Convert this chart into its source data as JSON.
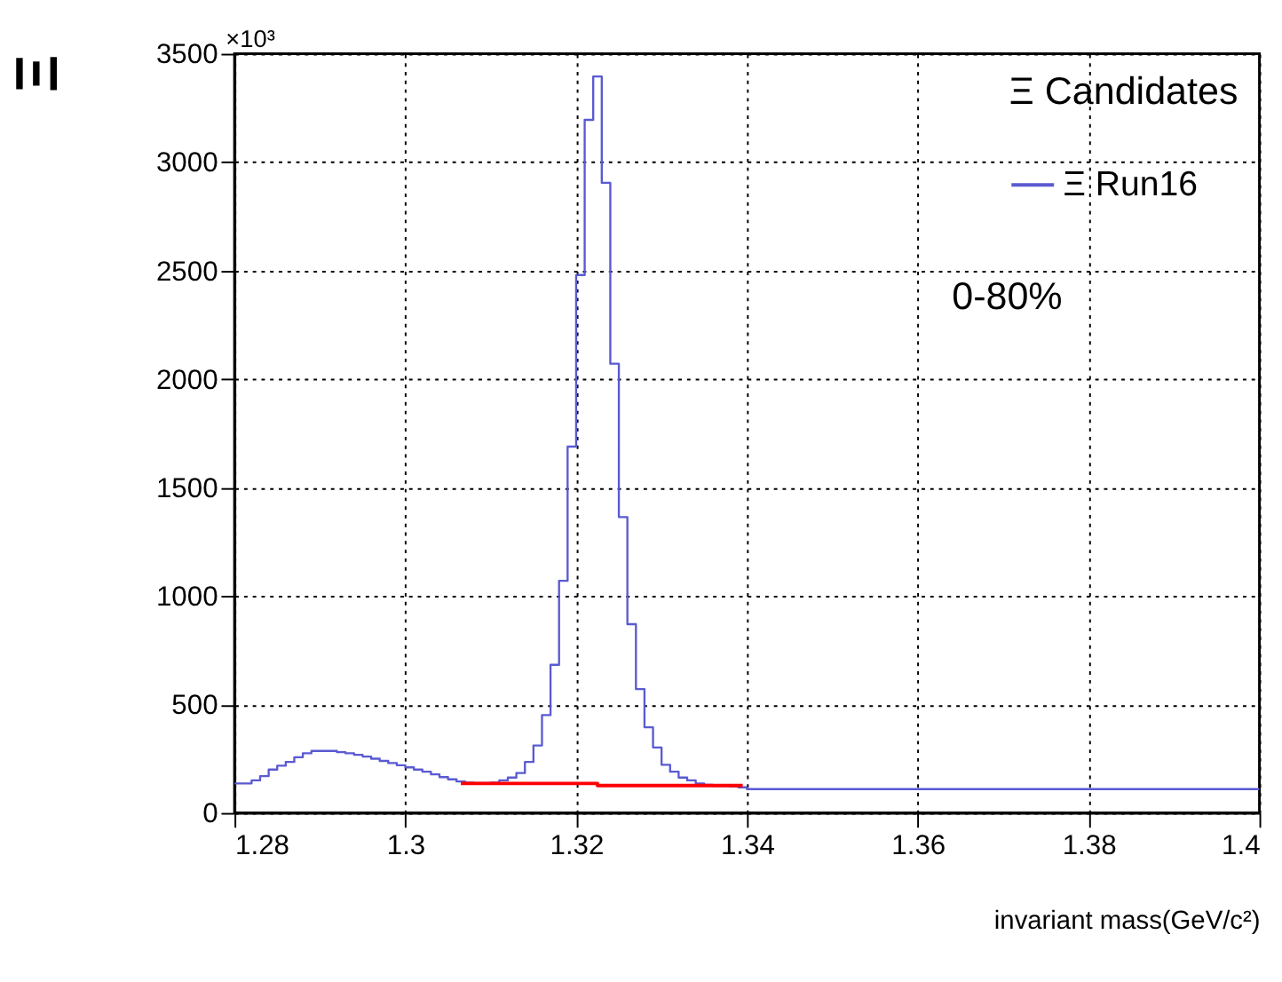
{
  "chart_data": {
    "type": "histogram",
    "ylabel": "Ξ",
    "xlabel": "invariant mass(GeV/c²)",
    "legend_title": "Ξ Candidates",
    "annotations": [
      "×10³",
      "0-80%"
    ],
    "bins": [
      1.28,
      1.281,
      1.282,
      1.283,
      1.284,
      1.285,
      1.286,
      1.287,
      1.288,
      1.289,
      1.29,
      1.291,
      1.292,
      1.293,
      1.294,
      1.295,
      1.296,
      1.297,
      1.298,
      1.299,
      1.3,
      1.301,
      1.302,
      1.303,
      1.304,
      1.305,
      1.306,
      1.307,
      1.308,
      1.309,
      1.31,
      1.311,
      1.312,
      1.313,
      1.314,
      1.315,
      1.316,
      1.317,
      1.318,
      1.319,
      1.32,
      1.321,
      1.322,
      1.323,
      1.324,
      1.325,
      1.326,
      1.327,
      1.328,
      1.329,
      1.33,
      1.331,
      1.332,
      1.333,
      1.334,
      1.335,
      1.336,
      1.337,
      1.338,
      1.339,
      1.34,
      1.341,
      1.342,
      1.343,
      1.344,
      1.345,
      1.346,
      1.347,
      1.348,
      1.349,
      1.35,
      1.351,
      1.352,
      1.353,
      1.354,
      1.355,
      1.356,
      1.357,
      1.358,
      1.359,
      1.36,
      1.361,
      1.362,
      1.363,
      1.364,
      1.365,
      1.366,
      1.367,
      1.368,
      1.369,
      1.37,
      1.371,
      1.372,
      1.373,
      1.374,
      1.375,
      1.376,
      1.377,
      1.378,
      1.379,
      1.38,
      1.381,
      1.382,
      1.383,
      1.384,
      1.385,
      1.386,
      1.387,
      1.388,
      1.389,
      1.39,
      1.391,
      1.392,
      1.393,
      1.394,
      1.395,
      1.396,
      1.397,
      1.398,
      1.399,
      1.4
    ],
    "series": [
      {
        "name": "Ξ Run16",
        "color": "#5a5ad2",
        "values": [
          136,
          136,
          150,
          170,
          200,
          218,
          235,
          257,
          275,
          286,
          286,
          286,
          280,
          275,
          268,
          260,
          250,
          240,
          230,
          220,
          210,
          200,
          190,
          178,
          165,
          155,
          145,
          140,
          138,
          138,
          140,
          150,
          163,
          184,
          235,
          311,
          451,
          683,
          1070,
          1689,
          2480,
          3195,
          3395,
          2905,
          2071,
          1364,
          870,
          571,
          395,
          302,
          222,
          190,
          163,
          150,
          136,
          130,
          125,
          125,
          122,
          118,
          110,
          110,
          110,
          110,
          110,
          110,
          110,
          110,
          110,
          110,
          110,
          110,
          110,
          110,
          110,
          110,
          110,
          110,
          110,
          110,
          110,
          110,
          110,
          110,
          110,
          110,
          110,
          110,
          110,
          110,
          110,
          110,
          110,
          110,
          110,
          110,
          110,
          110,
          110,
          110,
          110,
          110,
          110,
          110,
          110,
          110,
          110,
          110,
          110,
          110,
          110,
          110,
          110,
          110,
          110,
          110,
          110,
          110,
          110,
          110
        ]
      },
      {
        "type": "line",
        "color": "#ff0000",
        "x": [
          1.3065,
          1.3225,
          1.3225,
          1.3395
        ],
        "values": [
          136,
          136,
          126,
          126
        ]
      }
    ],
    "xlim": [
      1.28,
      1.4
    ],
    "xticks": [
      1.28,
      1.3,
      1.32,
      1.34,
      1.36,
      1.38,
      1.4
    ],
    "ylim": [
      0,
      3500
    ],
    "yticks": [
      0,
      500,
      1000,
      1500,
      2000,
      2500,
      3000,
      3500
    ],
    "grid": true,
    "legend": "top right"
  }
}
